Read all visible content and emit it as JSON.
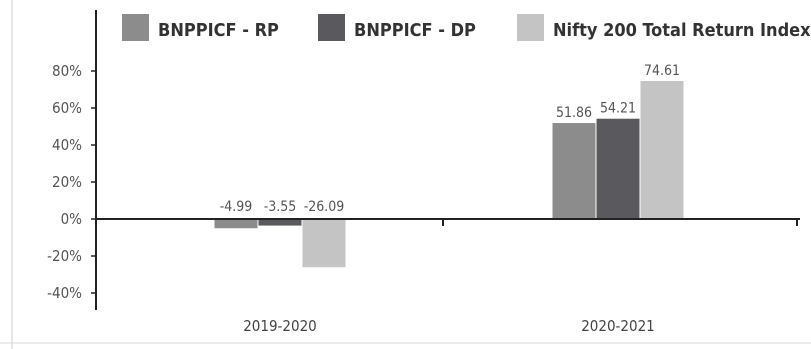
{
  "chart_data": {
    "type": "bar",
    "title": "",
    "xlabel": "",
    "ylabel": "",
    "categories": [
      "2019-2020",
      "2020-2021"
    ],
    "series": [
      {
        "name": "BNPPICF - RP",
        "values": [
          -4.99,
          51.86
        ],
        "color": "#8c8c8c"
      },
      {
        "name": "BNPPICF - DP",
        "values": [
          -3.55,
          54.21
        ],
        "color": "#5a5a5e"
      },
      {
        "name": "Nifty 200 Total Return Index",
        "values": [
          -26.09,
          74.61
        ],
        "color": "#c4c4c4"
      }
    ],
    "ylim": [
      -50,
      100
    ],
    "yticks": [
      -40,
      -20,
      0,
      20,
      40,
      60,
      80
    ],
    "ytick_labels": [
      "-40%",
      "-20%",
      "0%",
      "20%",
      "40%",
      "60%",
      "80%"
    ],
    "data_labels": [
      [
        "-4.99",
        "51.86"
      ],
      [
        "-3.55",
        "54.21"
      ],
      [
        "-26.09",
        "74.61"
      ]
    ],
    "legend_position": "top",
    "grid": false
  }
}
